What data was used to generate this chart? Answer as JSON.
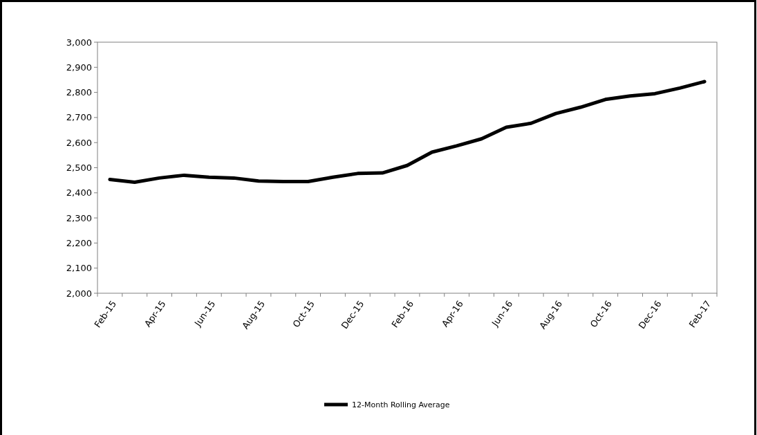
{
  "chart_data": {
    "type": "line",
    "categories": [
      "Feb-15",
      null,
      "Apr-15",
      null,
      "Jun-15",
      null,
      "Aug-15",
      null,
      "Oct-15",
      null,
      "Dec-15",
      null,
      "Feb-16",
      null,
      "Apr-16",
      null,
      "Jun-16",
      null,
      "Aug-16",
      null,
      "Oct-16",
      null,
      "Dec-16",
      null,
      "Feb-17"
    ],
    "series": [
      {
        "name": "12-Month Rolling Average",
        "color": "#000000",
        "values": [
          2453,
          2442,
          2459,
          2470,
          2462,
          2459,
          2447,
          2445,
          2445,
          2462,
          2477,
          2479,
          2509,
          2562,
          2587,
          2615,
          2661,
          2677,
          2716,
          2741,
          2772,
          2786,
          2795,
          2817,
          2843
        ]
      }
    ],
    "ylim": [
      2000,
      3000
    ],
    "yticks": [
      {
        "value": 2000,
        "label": "2,000"
      },
      {
        "value": 2100,
        "label": "2,100"
      },
      {
        "value": 2200,
        "label": "2,200"
      },
      {
        "value": 2300,
        "label": "2,300"
      },
      {
        "value": 2400,
        "label": "2,400"
      },
      {
        "value": 2500,
        "label": "2,500"
      },
      {
        "value": 2600,
        "label": "2,600"
      },
      {
        "value": 2700,
        "label": "2,700"
      },
      {
        "value": 2800,
        "label": "2,800"
      },
      {
        "value": 2900,
        "label": "2,900"
      },
      {
        "value": 3000,
        "label": "3,000"
      }
    ],
    "legend": "bottom",
    "marker": "none",
    "line_style": "solid"
  }
}
